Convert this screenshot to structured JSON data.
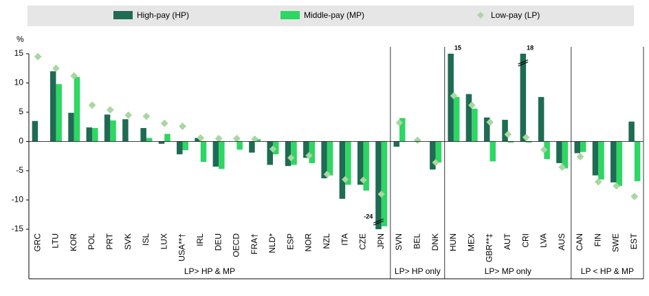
{
  "chart_data": {
    "type": "bar",
    "y_label": "%",
    "categories": [
      "GRC",
      "LTU",
      "KOR",
      "POL",
      "PRT",
      "SVK",
      "ISL",
      "LUX",
      "USA**†",
      "IRL",
      "DEU",
      "OECD",
      "FRA†",
      "NLD*",
      "ESP",
      "NOR",
      "NZL",
      "ITA",
      "CZE",
      "JPN",
      "SVN",
      "BEL",
      "DNK",
      "HUN",
      "MEX",
      "GBR**‡",
      "AUT",
      "CRI",
      "LVA",
      "AUS",
      "CAN",
      "FIN",
      "SWE",
      "EST"
    ],
    "series": [
      {
        "name": "High-pay (HP)",
        "color": "#1f6b54",
        "values": [
          3.5,
          12,
          4.9,
          2.4,
          4.6,
          3.8,
          2.3,
          -0.4,
          -2.2,
          0.6,
          -4.3,
          0,
          -1.9,
          -4,
          -4.2,
          -2.8,
          -6.3,
          -9.8,
          -7.4,
          -24,
          -0.9,
          0,
          -4.8,
          15,
          8.1,
          4.1,
          3.7,
          18,
          7.6,
          -3.7,
          -2,
          -5.8,
          -7,
          3.4
        ],
        "value_labels": [
          null,
          null,
          null,
          null,
          null,
          null,
          null,
          null,
          null,
          null,
          null,
          null,
          null,
          null,
          null,
          null,
          null,
          null,
          null,
          "-24",
          null,
          null,
          null,
          "15",
          null,
          null,
          null,
          "18",
          null,
          null,
          null,
          null,
          null,
          null
        ]
      },
      {
        "name": "Middle-pay (MP)",
        "color": "#2ed663",
        "values": [
          null,
          9.8,
          11,
          2.3,
          3.6,
          null,
          0.6,
          1.3,
          -1.5,
          -3.5,
          -4.7,
          -1.4,
          0.4,
          -2.2,
          -4,
          -3.7,
          -5.8,
          -7.4,
          -8.4,
          -14.5,
          4,
          0,
          -3.6,
          7.6,
          5.6,
          -3.4,
          -0.2,
          -0.2,
          -3,
          -4.6,
          -1.8,
          -6.5,
          -7.6,
          -6.8
        ]
      },
      {
        "name": "Low-pay (LP)",
        "color": "#a8d8a0",
        "marker": "diamond",
        "values": [
          14.5,
          12.5,
          11.2,
          6.2,
          5.4,
          4.5,
          4.3,
          3.1,
          2.6,
          0.6,
          0.5,
          0.5,
          0.4,
          -1.3,
          -2.8,
          -2.4,
          -5.6,
          -6.5,
          -6.6,
          -9,
          3.2,
          0.2,
          -3.6,
          7.8,
          6.2,
          3.3,
          1.2,
          0.7,
          -1.4,
          -4.4,
          -2.6,
          -6.9,
          -7.6,
          -9.4
        ]
      }
    ],
    "groups": [
      {
        "label": "LP> HP & MP",
        "count": 20
      },
      {
        "label": "LP> HP only",
        "count": 3
      },
      {
        "label": "LP> MP only",
        "count": 7
      },
      {
        "label": "LP < HP & MP",
        "count": 4
      }
    ],
    "ylim": [
      -15,
      15
    ],
    "yticks": [
      -15,
      -10,
      -5,
      0,
      5,
      10,
      15
    ]
  }
}
